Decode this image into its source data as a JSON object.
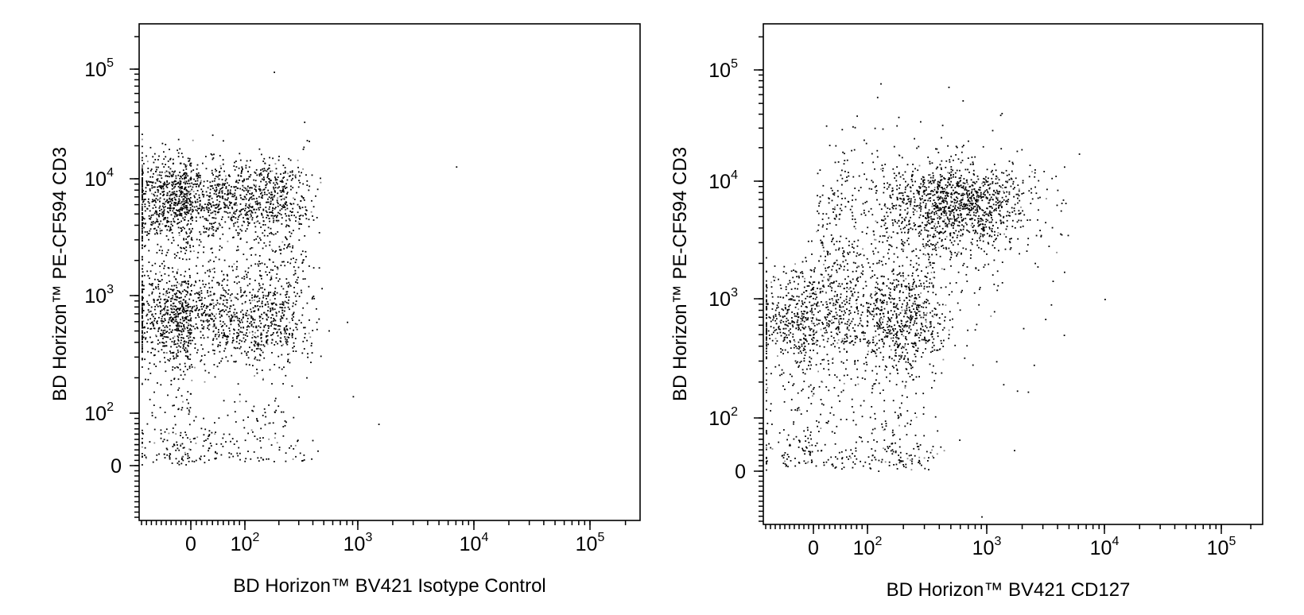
{
  "chart_data": [
    {
      "type": "scatter",
      "title": "",
      "xlabel": "BD Horizon™ BV421 Isotype Control",
      "ylabel": "BD Horizon™ PE-CF594 CD3",
      "x_scale": "biexponential",
      "y_scale": "biexponential",
      "xlim": [
        -200,
        250000
      ],
      "ylim": [
        -200,
        250000
      ],
      "x_ticks": [
        {
          "value": 0,
          "base": "0",
          "exp": ""
        },
        {
          "value": 100,
          "base": "10",
          "exp": "2"
        },
        {
          "value": 1000,
          "base": "10",
          "exp": "3"
        },
        {
          "value": 10000,
          "base": "10",
          "exp": "4"
        },
        {
          "value": 100000,
          "base": "10",
          "exp": "5"
        }
      ],
      "y_ticks": [
        {
          "value": 0,
          "base": "0",
          "exp": ""
        },
        {
          "value": 100,
          "base": "10",
          "exp": "2"
        },
        {
          "value": 1000,
          "base": "10",
          "exp": "3"
        },
        {
          "value": 10000,
          "base": "10",
          "exp": "4"
        },
        {
          "value": 100000,
          "base": "10",
          "exp": "5"
        }
      ],
      "populations": [
        {
          "x_center": 20,
          "y_center": 7000,
          "x_spread": 140,
          "y_spread_decades": 0.18,
          "count": 1400
        },
        {
          "x_center": 20,
          "y_center": 650,
          "x_spread": 140,
          "y_spread_decades": 0.2,
          "count": 1300
        },
        {
          "x_center": 40,
          "y_center": 2500,
          "x_spread": 150,
          "y_spread_decades": 0.4,
          "count": 500
        },
        {
          "x_center": 30,
          "y_center": 60,
          "x_spread": 130,
          "y_spread_decades": 0.45,
          "count": 330
        }
      ],
      "outliers": [
        [
          180,
          95000
        ],
        [
          7000,
          13000
        ],
        [
          800,
          600
        ],
        [
          900,
          140
        ],
        [
          1500,
          80
        ],
        [
          450,
          3500
        ],
        [
          400,
          1000
        ]
      ],
      "grid": false,
      "legend": "none"
    },
    {
      "type": "scatter",
      "title": "",
      "xlabel": "BD Horizon™ BV421 CD127",
      "ylabel": "BD Horizon™ PE-CF594 CD3",
      "x_scale": "biexponential",
      "y_scale": "biexponential",
      "xlim": [
        -200,
        250000
      ],
      "ylim": [
        -200,
        250000
      ],
      "x_ticks": [
        {
          "value": 0,
          "base": "0",
          "exp": ""
        },
        {
          "value": 100,
          "base": "10",
          "exp": "2"
        },
        {
          "value": 1000,
          "base": "10",
          "exp": "3"
        },
        {
          "value": 10000,
          "base": "10",
          "exp": "4"
        },
        {
          "value": 100000,
          "base": "10",
          "exp": "5"
        }
      ],
      "y_ticks": [
        {
          "value": 0,
          "base": "0",
          "exp": ""
        },
        {
          "value": 100,
          "base": "10",
          "exp": "2"
        },
        {
          "value": 1000,
          "base": "10",
          "exp": "3"
        },
        {
          "value": 10000,
          "base": "10",
          "exp": "4"
        },
        {
          "value": 100000,
          "base": "10",
          "exp": "5"
        }
      ],
      "populations": [
        {
          "x_center": 600,
          "y_center": 6500,
          "x_log_spread": 0.3,
          "y_spread_decades": 0.18,
          "count": 1100
        },
        {
          "x_center": 60,
          "y_center": 650,
          "x_spread": 160,
          "y_spread_decades": 0.22,
          "count": 1300
        },
        {
          "x_center": 150,
          "y_center": 3000,
          "x_log_spread": 0.55,
          "y_spread_decades": 0.45,
          "count": 700
        },
        {
          "x_center": 60,
          "y_center": 60,
          "x_spread": 150,
          "y_spread_decades": 0.45,
          "count": 380
        }
      ],
      "outliers": [
        [
          10000,
          1000
        ],
        [
          4500,
          500
        ],
        [
          3500,
          900
        ],
        [
          2500,
          280
        ],
        [
          1800,
          170
        ],
        [
          1700,
          40
        ],
        [
          1200,
          300
        ],
        [
          900,
          -180
        ]
      ],
      "grid": false,
      "legend": "none"
    }
  ]
}
